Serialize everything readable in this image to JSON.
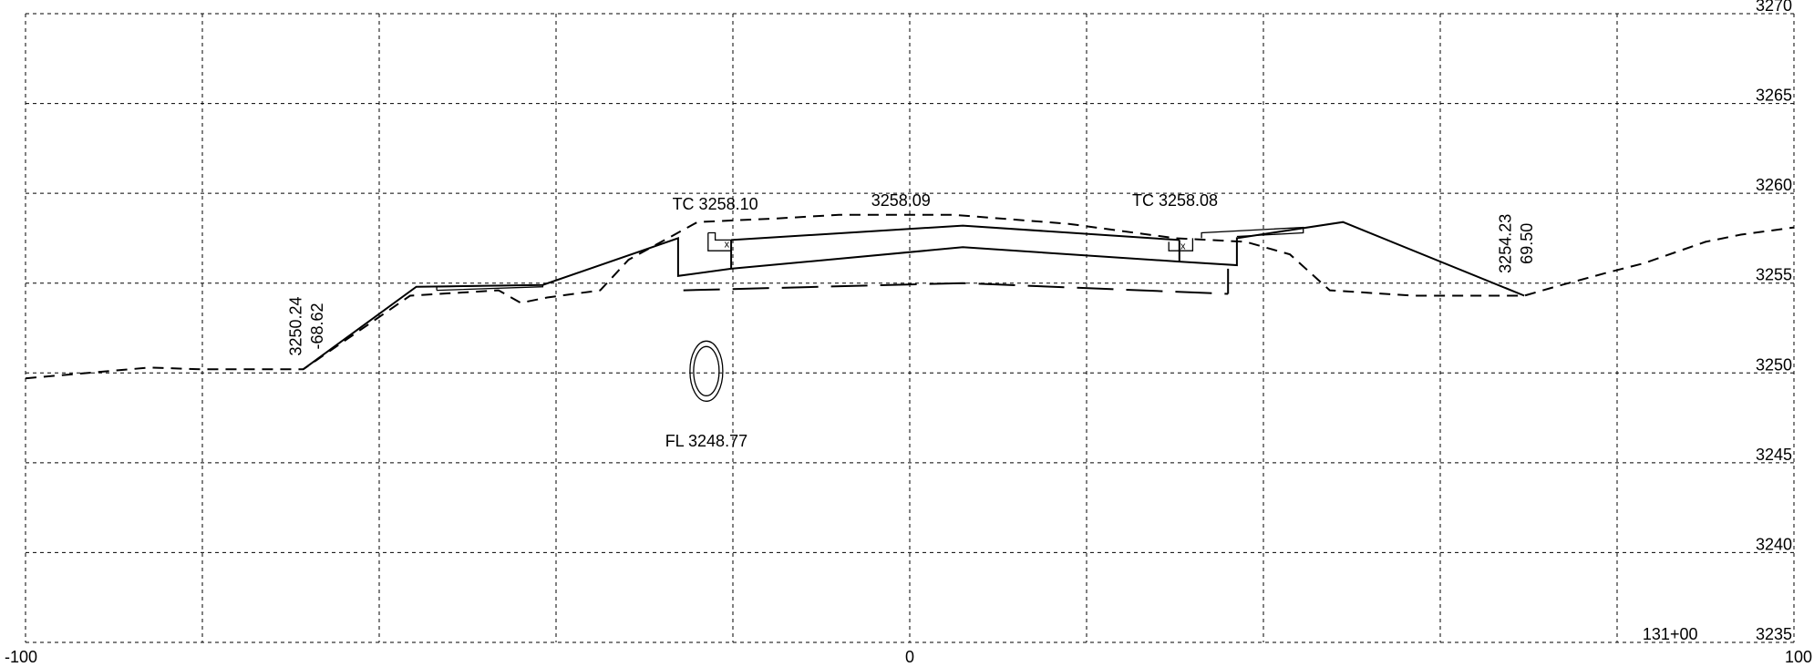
{
  "chart_data": {
    "type": "cross-section",
    "station": "131+00",
    "x_range": [
      -100,
      100
    ],
    "y_range": [
      3235,
      3270
    ],
    "x_ticks": [
      "-100",
      "0",
      "100"
    ],
    "y_ticks": [
      "3270",
      "3265",
      "3260",
      "3255",
      "3250",
      "3245",
      "3240",
      "3235"
    ],
    "grid": true,
    "annotations": [
      {
        "text": "TC 3258.10",
        "offset": -22,
        "elevation": 3259.1
      },
      {
        "text": "3258.09",
        "offset": -1,
        "elevation": 3259.3
      },
      {
        "text": "TC 3258.08",
        "offset": 30,
        "elevation": 3259.3
      },
      {
        "text": "FL 3248.77",
        "offset": -23,
        "elevation": 3245.9
      },
      {
        "text": "3250.24",
        "offset": -68.8,
        "elevation": 3252.6,
        "rotated": true
      },
      {
        "text": "-68.62",
        "offset": -66.4,
        "elevation": 3252.6,
        "rotated": true
      },
      {
        "text": "3254.23",
        "offset": 68.0,
        "elevation": 3257.2,
        "rotated": true
      },
      {
        "text": "69.50",
        "offset": 70.4,
        "elevation": 3257.2,
        "rotated": true
      }
    ],
    "existing_ground": [
      [
        -100,
        3249.7
      ],
      [
        -86,
        3250.3
      ],
      [
        -80,
        3250.2
      ],
      [
        -68.6,
        3250.2
      ],
      [
        -56.5,
        3254.3
      ],
      [
        -46.5,
        3254.6
      ],
      [
        -44,
        3253.9
      ],
      [
        -41,
        3254.2
      ],
      [
        -35,
        3254.6
      ],
      [
        -31.8,
        3256.3
      ],
      [
        -24,
        3258.4
      ],
      [
        -15,
        3258.6
      ],
      [
        -8,
        3258.8
      ],
      [
        5,
        3258.8
      ],
      [
        18,
        3258.3
      ],
      [
        30,
        3257.5
      ],
      [
        38,
        3257.3
      ],
      [
        43,
        3256.6
      ],
      [
        47.5,
        3254.6
      ],
      [
        57,
        3254.3
      ],
      [
        69.5,
        3254.3
      ],
      [
        73,
        3254.8
      ],
      [
        79,
        3255.6
      ],
      [
        83,
        3256.1
      ],
      [
        90,
        3257.3
      ],
      [
        94,
        3257.7
      ],
      [
        100,
        3258.1
      ]
    ],
    "proposed_section": [
      [
        -68.6,
        3250.2
      ],
      [
        -55.8,
        3254.8
      ],
      [
        -41.5,
        3254.9
      ],
      [
        -26.2,
        3257.5
      ],
      [
        -26.2,
        3255.4
      ],
      [
        -20.2,
        3255.8
      ],
      [
        6,
        3257.0
      ],
      [
        30.5,
        3256.2
      ],
      [
        37,
        3256.0
      ],
      [
        37,
        3257.5
      ],
      [
        49,
        3258.4
      ],
      [
        69.5,
        3254.3
      ]
    ],
    "proposed_pavement_top": [
      [
        -20.2,
        3257.4
      ],
      [
        6,
        3258.2
      ],
      [
        30.5,
        3257.4
      ]
    ],
    "subgrade": [
      [
        -25.6,
        3254.6
      ],
      [
        6,
        3255.0
      ],
      [
        36,
        3254.4
      ]
    ],
    "storm_pipe": {
      "offset": -23,
      "elevation": 3250.1,
      "label": "FL 3248.77"
    }
  }
}
